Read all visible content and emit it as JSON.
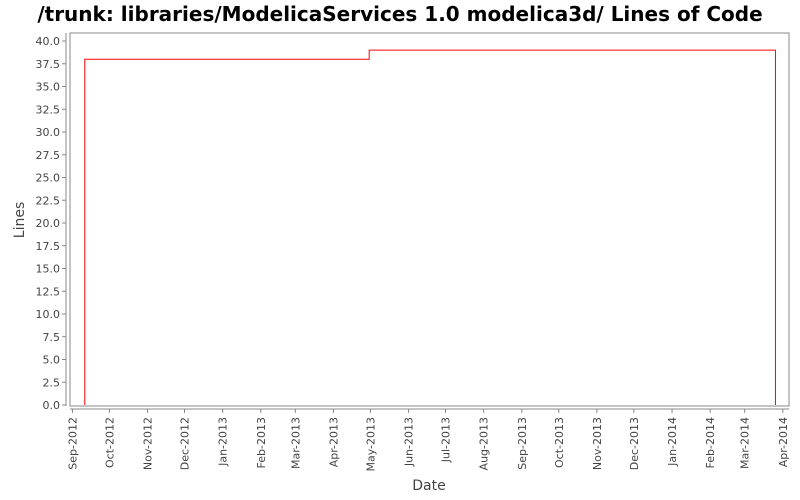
{
  "chart_data": {
    "type": "line",
    "step": true,
    "title": "/trunk: libraries/ModelicaServices 1.0 modelica3d/ Lines of Code",
    "xlabel": "Date",
    "ylabel": "Lines",
    "ylim": [
      0,
      40
    ],
    "yticks": [
      "0.0",
      "2.5",
      "5.0",
      "7.5",
      "10.0",
      "12.5",
      "15.0",
      "17.5",
      "20.0",
      "22.5",
      "25.0",
      "27.5",
      "30.0",
      "32.5",
      "35.0",
      "37.5",
      "40.0"
    ],
    "xlim": [
      "2012-08-30",
      "2014-04-06"
    ],
    "xticks": [
      {
        "date": "2012-09-01",
        "label": "Sep-2012"
      },
      {
        "date": "2012-10-01",
        "label": "Oct-2012"
      },
      {
        "date": "2012-11-01",
        "label": "Nov-2012"
      },
      {
        "date": "2012-12-01",
        "label": "Dec-2012"
      },
      {
        "date": "2013-01-01",
        "label": "Jan-2013"
      },
      {
        "date": "2013-02-01",
        "label": "Feb-2013"
      },
      {
        "date": "2013-03-01",
        "label": "Mar-2013"
      },
      {
        "date": "2013-04-01",
        "label": "Apr-2013"
      },
      {
        "date": "2013-05-01",
        "label": "May-2013"
      },
      {
        "date": "2013-06-01",
        "label": "Jun-2013"
      },
      {
        "date": "2013-07-01",
        "label": "Jul-2013"
      },
      {
        "date": "2013-08-01",
        "label": "Aug-2013"
      },
      {
        "date": "2013-09-01",
        "label": "Sep-2013"
      },
      {
        "date": "2013-10-01",
        "label": "Oct-2013"
      },
      {
        "date": "2013-11-01",
        "label": "Nov-2013"
      },
      {
        "date": "2013-12-01",
        "label": "Dec-2013"
      },
      {
        "date": "2014-01-01",
        "label": "Jan-2014"
      },
      {
        "date": "2014-02-01",
        "label": "Feb-2014"
      },
      {
        "date": "2014-03-01",
        "label": "Mar-2014"
      },
      {
        "date": "2014-04-01",
        "label": "Apr-2014"
      }
    ],
    "grid": false,
    "series": [
      {
        "color": "#ff0000",
        "points": [
          {
            "x": "2012-09-11",
            "y": 0
          },
          {
            "x": "2012-09-11",
            "y": 38
          },
          {
            "x": "2013-04-30",
            "y": 38
          },
          {
            "x": "2013-04-30",
            "y": 39
          },
          {
            "x": "2014-03-26",
            "y": 39
          },
          {
            "x": "2014-03-26",
            "y": 0
          }
        ]
      }
    ]
  }
}
